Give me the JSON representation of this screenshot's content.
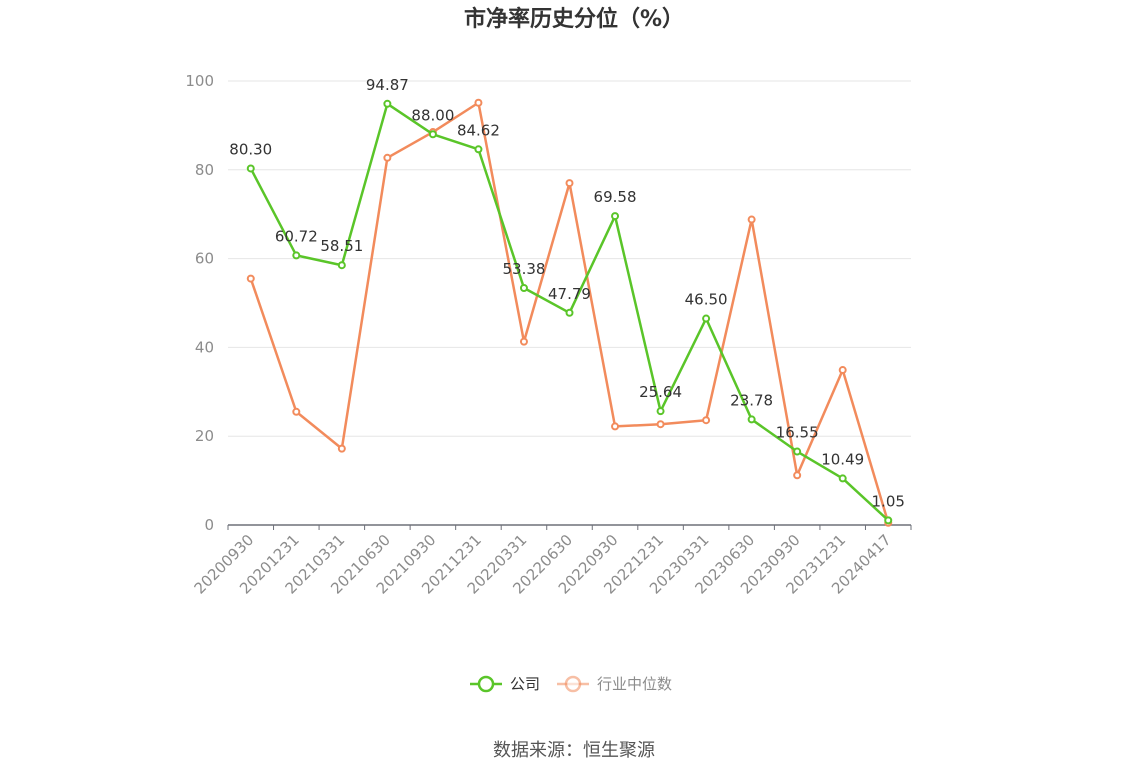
{
  "chart_data": {
    "type": "line",
    "title": "市净率历史分位（%）",
    "categories": [
      "20200930",
      "20201231",
      "20210331",
      "20210630",
      "20210930",
      "20211231",
      "20220331",
      "20220630",
      "20220930",
      "20221231",
      "20230331",
      "20230630",
      "20230930",
      "20231231",
      "20240417"
    ],
    "ylim": [
      0,
      100
    ],
    "yticks": [
      0,
      20,
      40,
      60,
      80,
      100
    ],
    "grid": true,
    "legend_position": "bottom-center",
    "series": [
      {
        "name": "公司",
        "color": "#5ac529",
        "values": [
          80.3,
          60.72,
          58.51,
          94.87,
          88.0,
          84.62,
          53.38,
          47.79,
          69.58,
          25.64,
          46.5,
          23.78,
          16.55,
          10.49,
          1.05
        ],
        "labels": [
          "80.30",
          "60.72",
          "58.51",
          "94.87",
          "88.00",
          "84.62",
          "53.38",
          "47.79",
          "69.58",
          "25.64",
          "46.50",
          "23.78",
          "16.55",
          "10.49",
          "1.05"
        ]
      },
      {
        "name": "行业中位数",
        "color": "#f28b5c",
        "values": [
          55.5,
          25.5,
          17.2,
          82.7,
          88.5,
          95.1,
          41.3,
          77.0,
          22.2,
          22.7,
          23.6,
          68.8,
          11.2,
          34.9,
          0.5
        ]
      }
    ]
  },
  "source_text": "数据来源：恒生聚源"
}
